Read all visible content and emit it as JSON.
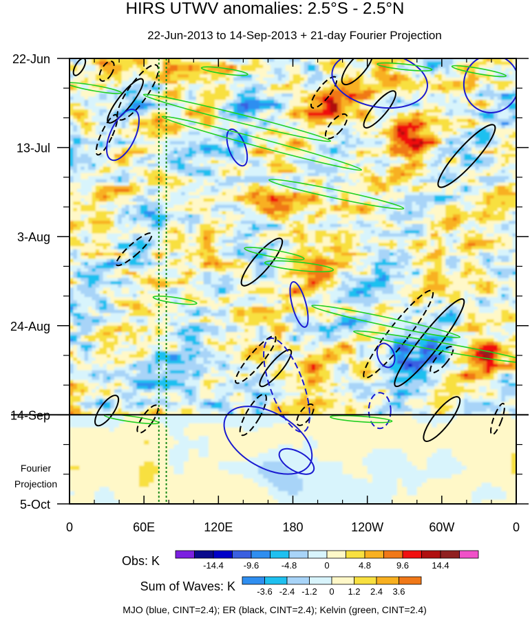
{
  "chart_data": {
    "type": "heatmap",
    "title": "HIRS UTWV anomalies: 2.5°S - 2.5°N",
    "subtitle": "22-Jun-2013 to 14-Sep-2013 + 21-day Fourier Projection",
    "x_axis": {
      "range_deg_east": [
        0,
        360
      ],
      "tick_values_deg_east": [
        0,
        60,
        120,
        180,
        240,
        300,
        360
      ],
      "tick_labels": [
        "0",
        "60E",
        "120E",
        "180",
        "120W",
        "60W",
        "0"
      ]
    },
    "y_axis": {
      "range_days_from_start": [
        0,
        105
      ],
      "tick_values_days": [
        0,
        21,
        42,
        63,
        84,
        105
      ],
      "tick_labels": [
        "22-Jun",
        "13-Jul",
        "3-Aug",
        "24-Aug",
        "14-Sep",
        "5-Oct"
      ],
      "projection_label_line1": "Fourier",
      "projection_label_line2": "Projection",
      "projection_start_day": 84
    },
    "vertical_reference_lines_deg_east": [
      72,
      78
    ],
    "obs_legend": {
      "label": "Obs: K",
      "colors": [
        "#7b1fe0",
        "#0a0a8c",
        "#0000c8",
        "#3a5fe0",
        "#2f8ef0",
        "#1ec0f0",
        "#a8d4f8",
        "#d8f4fc",
        "#fff8c8",
        "#f8e040",
        "#f8b020",
        "#f07818",
        "#f01010",
        "#b01010",
        "#902020",
        "#f050c8"
      ],
      "labels": [
        "-14.4",
        "-9.6",
        "-4.8",
        "0",
        "4.8",
        "9.6",
        "14.4"
      ]
    },
    "waves_legend": {
      "label": "Sum of Waves: K",
      "colors": [
        "#2f8ef0",
        "#1ec0f0",
        "#a8d4f8",
        "#d8f4fc",
        "#fff8c8",
        "#f8e040",
        "#f8b020",
        "#f07818"
      ],
      "labels": [
        "-3.6",
        "-2.4",
        "-1.2",
        "0",
        "1.2",
        "2.4",
        "3.6"
      ]
    },
    "footer": "MJO (blue, CINT=2.4); ER (black, CINT=2.4); Kelvin (green, CINT=2.4)",
    "overlay_colors": {
      "mjo": "#1a1ad0",
      "er": "#000000",
      "kelvin": "#20d020",
      "ref_line": "#1a8a1a"
    },
    "notable_anomaly_centers": [
      {
        "lon": 215,
        "day": 11,
        "value": 9.6
      },
      {
        "lon": 180,
        "day": 34,
        "value": 12.0
      },
      {
        "lon": 185,
        "day": 73,
        "value": 9.6
      },
      {
        "lon": 275,
        "day": 18,
        "value": 12.0
      },
      {
        "lon": 250,
        "day": 6,
        "value": 7.2
      },
      {
        "lon": 330,
        "day": 70,
        "value": 9.6
      },
      {
        "lon": 80,
        "day": 2,
        "value": 7.2
      },
      {
        "lon": 200,
        "day": 50,
        "value": 7.2
      },
      {
        "lon": 275,
        "day": 70,
        "value": -9.6
      },
      {
        "lon": 140,
        "day": 10,
        "value": -4.8
      },
      {
        "lon": 60,
        "day": 24,
        "value": -4.8
      },
      {
        "lon": 110,
        "day": 78,
        "value": -4.8
      },
      {
        "lon": 170,
        "day": 97,
        "value": -2.4
      },
      {
        "lon": 250,
        "day": 94,
        "value": -1.2
      },
      {
        "lon": 60,
        "day": 100,
        "value": 1.2
      }
    ]
  }
}
